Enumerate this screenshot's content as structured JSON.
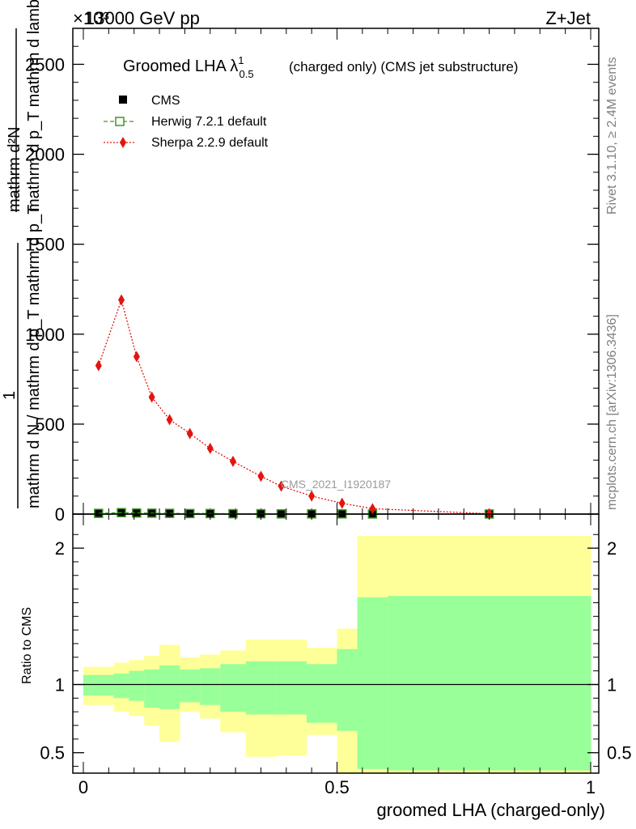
{
  "header": {
    "energy": "13000 GeV pp",
    "process": "Z+Jet",
    "exponent": "×10³"
  },
  "side_labels": {
    "rivet": "Rivet 3.1.10, ≥ 2.4M events",
    "mcplots": "mcplots.cern.ch [arXiv:1306.3436]"
  },
  "watermark": "CMS_2021_I1920187",
  "colors": {
    "cms": "#000000",
    "herwig": "#3a9a1e",
    "sherpa": "#e3140f",
    "band_inner": "#99ff99",
    "band_outer": "#ffff99"
  },
  "chart_data": [
    {
      "type": "line",
      "title": "Groomed LHA λ^1_0.5 (charged only) (CMS jet substructure)",
      "title_parts": {
        "main": "Groomed LHA λ",
        "sup": "1",
        "sub": "0.5",
        "rest": "(charged only) (CMS jet substructure)"
      },
      "ylabel_top": "mathrm d²N",
      "ylabel_mid": "mathrm d p_T mathrm d lambda",
      "ylabel_den_1": "1",
      "ylabel_den_2": "mathrm d N / mathrm d p_T",
      "ylabel_den_text": "mathrm d N / mathrm d p_T mathrm d p_T",
      "y_multiplier": "×10³",
      "xlim": [
        0,
        1
      ],
      "ylim": [
        0,
        2.7
      ],
      "y_ticks": [
        0,
        500,
        1000,
        1500,
        2000,
        2500
      ],
      "y_tick_labels": [
        "0",
        "500",
        "1000",
        "1500",
        "2000",
        "2500"
      ],
      "legend": {
        "placement": "top-left",
        "entries": [
          "CMS",
          "Herwig 7.2.1 default",
          "Sherpa 2.2.9 default"
        ]
      },
      "bins": [
        [
          0,
          0.06
        ],
        [
          0.06,
          0.09
        ],
        [
          0.09,
          0.12
        ],
        [
          0.12,
          0.15
        ],
        [
          0.15,
          0.19
        ],
        [
          0.19,
          0.23
        ],
        [
          0.23,
          0.27
        ],
        [
          0.27,
          0.32
        ],
        [
          0.32,
          0.38
        ],
        [
          0.38,
          0.44
        ],
        [
          0.44,
          0.5
        ],
        [
          0.5,
          0.54
        ],
        [
          0.54,
          0.6
        ],
        [
          0.6,
          1.0
        ]
      ],
      "series": [
        {
          "name": "CMS",
          "marker": "square",
          "x": [
            0.03,
            0.075,
            0.105,
            0.135,
            0.17,
            0.21,
            0.25,
            0.295,
            0.35,
            0.39,
            0.45,
            0.51,
            0.57,
            0.8
          ],
          "values": [
            0.005,
            0.005,
            0.005,
            0.005,
            0.004,
            0.003,
            0.003,
            0.002,
            0.002,
            0.001,
            0.001,
            0.001,
            0.0005,
            0.0004
          ]
        },
        {
          "name": "Herwig 7.2.1 default",
          "marker": "open-square",
          "x": [
            0.03,
            0.075,
            0.105,
            0.135,
            0.17,
            0.21,
            0.25,
            0.295,
            0.35,
            0.39,
            0.45,
            0.51,
            0.57,
            0.8
          ],
          "values": [
            0.004,
            0.008,
            0.006,
            0.005,
            0.004,
            0.003,
            0.003,
            0.002,
            0.002,
            0.001,
            0.001,
            0.001,
            0.0005,
            0.0004
          ]
        },
        {
          "name": "Sherpa 2.2.9 default",
          "marker": "diamond",
          "x": [
            0.03,
            0.075,
            0.105,
            0.135,
            0.17,
            0.21,
            0.25,
            0.295,
            0.35,
            0.39,
            0.45,
            0.51,
            0.57,
            0.8
          ],
          "values": [
            0.825,
            1.19,
            0.875,
            0.65,
            0.525,
            0.448,
            0.365,
            0.293,
            0.21,
            0.155,
            0.1,
            0.06,
            0.03,
            0.002
          ]
        }
      ]
    },
    {
      "type": "area",
      "ylabel": "Ratio to CMS",
      "xlabel": "groomed LHA (charged-only)",
      "xlim": [
        0,
        1
      ],
      "ylim": [
        0.35,
        2.25
      ],
      "x_ticks": [
        0,
        0.5,
        1
      ],
      "x_tick_labels": [
        "0",
        "0.5",
        "1"
      ],
      "y_ticks": [
        0.5,
        1,
        2
      ],
      "y_tick_labels": [
        "0.5",
        "1",
        "2"
      ],
      "reference_line": 1,
      "bins": [
        [
          0,
          0.04
        ],
        [
          0.04,
          0.06
        ],
        [
          0.06,
          0.09
        ],
        [
          0.09,
          0.12
        ],
        [
          0.12,
          0.15
        ],
        [
          0.15,
          0.19
        ],
        [
          0.19,
          0.23
        ],
        [
          0.23,
          0.27
        ],
        [
          0.27,
          0.32
        ],
        [
          0.32,
          0.38
        ],
        [
          0.38,
          0.44
        ],
        [
          0.44,
          0.5
        ],
        [
          0.5,
          0.54
        ],
        [
          0.54,
          0.6
        ],
        [
          0.6,
          1.0
        ]
      ],
      "outer_band": {
        "low": [
          0.85,
          0.85,
          0.8,
          0.77,
          0.7,
          0.58,
          0.8,
          0.75,
          0.65,
          0.47,
          0.48,
          0.63,
          0.0,
          0.0,
          0.0
        ],
        "high": [
          1.13,
          1.13,
          1.16,
          1.18,
          1.21,
          1.29,
          1.2,
          1.22,
          1.25,
          1.33,
          1.33,
          1.27,
          1.41,
          2.09,
          2.09
        ]
      },
      "inner_band": {
        "low": [
          0.92,
          0.92,
          0.9,
          0.88,
          0.83,
          0.82,
          0.87,
          0.85,
          0.8,
          0.78,
          0.78,
          0.72,
          0.66,
          0.38,
          0.37
        ],
        "high": [
          1.07,
          1.07,
          1.08,
          1.1,
          1.11,
          1.14,
          1.11,
          1.12,
          1.15,
          1.17,
          1.17,
          1.15,
          1.26,
          1.64,
          1.65
        ]
      }
    }
  ]
}
